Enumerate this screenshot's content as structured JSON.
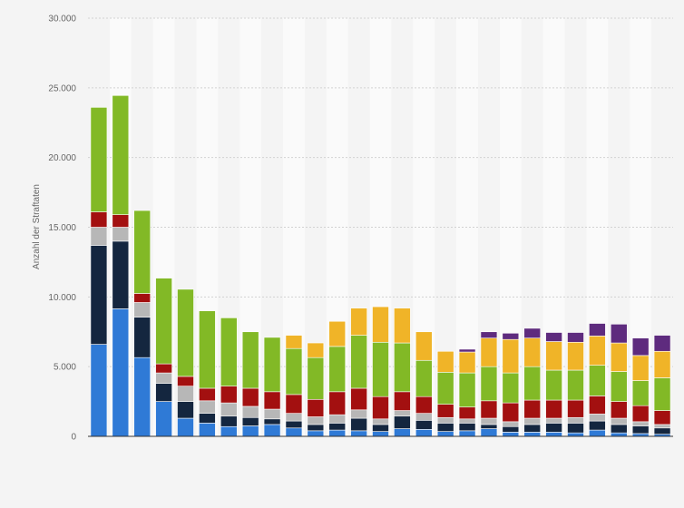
{
  "chart_data": {
    "type": "bar",
    "stacked": true,
    "title": "",
    "xlabel": "",
    "ylabel": "Anzahl der Straftaten",
    "ylim": [
      0,
      30000
    ],
    "yticks": [
      0,
      5000,
      10000,
      15000,
      20000,
      25000,
      30000
    ],
    "ytick_labels": [
      "0",
      "5.000",
      "10.000",
      "15.000",
      "20.000",
      "25.000",
      "30.000"
    ],
    "grid": true,
    "legend": "none",
    "series": [
      {
        "color": "#2f7ad6",
        "values": [
          6600,
          9150,
          5650,
          2500,
          1300,
          950,
          700,
          750,
          850,
          600,
          400,
          450,
          400,
          350,
          550,
          500,
          350,
          400,
          550,
          300,
          300,
          300,
          250,
          450,
          250,
          200,
          150
        ]
      },
      {
        "color": "#14263f",
        "values": [
          7100,
          4850,
          2900,
          1300,
          1200,
          700,
          750,
          600,
          400,
          500,
          450,
          500,
          900,
          500,
          900,
          650,
          600,
          550,
          300,
          400,
          550,
          650,
          700,
          650,
          600,
          550,
          450
        ]
      },
      {
        "color": "#b7b7b7",
        "values": [
          1300,
          1000,
          1050,
          750,
          1100,
          900,
          950,
          800,
          700,
          550,
          550,
          600,
          600,
          400,
          400,
          500,
          400,
          300,
          450,
          350,
          450,
          350,
          400,
          500,
          450,
          300,
          250
        ]
      },
      {
        "color": "#a31010",
        "values": [
          1100,
          900,
          650,
          650,
          700,
          900,
          1200,
          1300,
          1250,
          1350,
          1250,
          1650,
          1550,
          1600,
          1350,
          1200,
          950,
          850,
          1250,
          1350,
          1300,
          1300,
          1250,
          1300,
          1200,
          1150,
          1000
        ]
      },
      {
        "color": "#82b926",
        "values": [
          7500,
          8550,
          5950,
          6150,
          6250,
          5550,
          4900,
          4050,
          3900,
          3300,
          3000,
          3250,
          3800,
          3900,
          3500,
          2600,
          2300,
          2450,
          2450,
          2150,
          2400,
          2150,
          2150,
          2200,
          2150,
          1800,
          2350
        ]
      },
      {
        "color": "#f0b428",
        "values": [
          0,
          0,
          0,
          0,
          0,
          0,
          0,
          0,
          0,
          950,
          1050,
          1800,
          1950,
          2550,
          2500,
          2050,
          1500,
          1500,
          2050,
          2400,
          2050,
          2050,
          2000,
          2100,
          2050,
          1800,
          1900
        ]
      },
      {
        "color": "#5e2b7e",
        "values": [
          0,
          0,
          0,
          0,
          0,
          0,
          0,
          0,
          0,
          0,
          0,
          0,
          0,
          0,
          0,
          0,
          0,
          200,
          450,
          450,
          700,
          650,
          700,
          900,
          1350,
          1250,
          1150
        ]
      }
    ]
  }
}
